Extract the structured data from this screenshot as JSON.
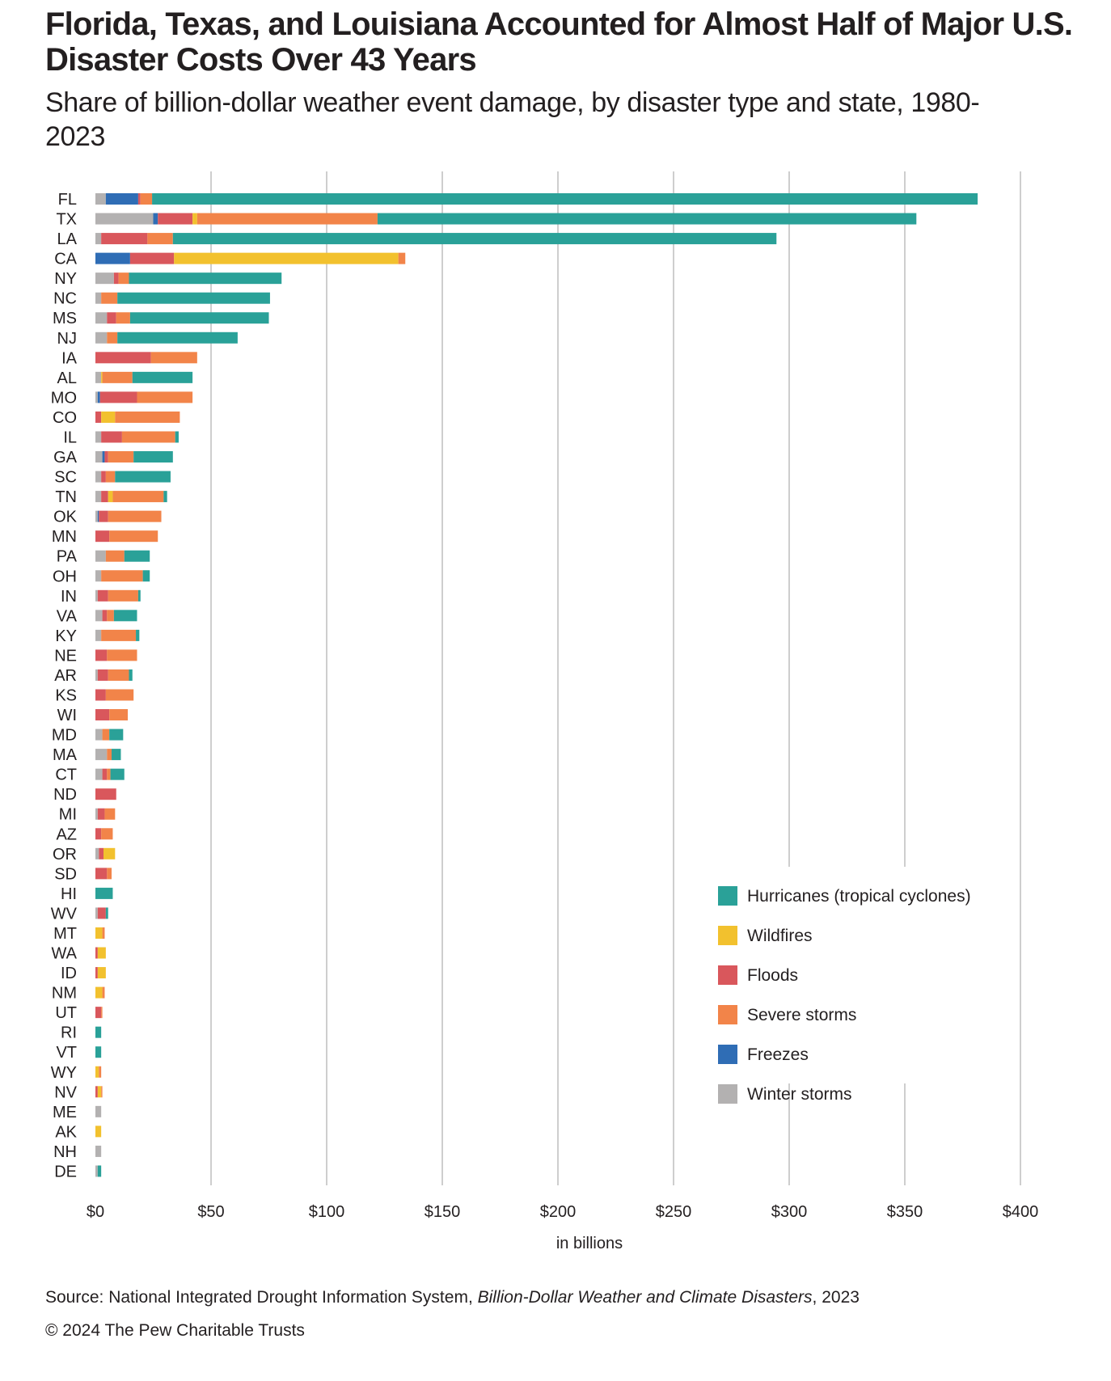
{
  "header": {
    "title": "Florida, Texas, and Louisiana Accounted for Almost Half of Major U.S. Disaster Costs Over 43 Years",
    "subtitle": "Share of billion-dollar weather event damage, by disaster type and state, 1980-2023"
  },
  "chart_data": {
    "type": "bar",
    "orientation": "horizontal",
    "stacked": true,
    "title": "Florida, Texas, and Louisiana Accounted for Almost Half of Major U.S. Disaster Costs Over 43 Years",
    "subtitle": "Share of billion-dollar weather event damage, by disaster type and state, 1980-2023",
    "xlabel": "in billions",
    "ylabel": "",
    "xlim": [
      0,
      400
    ],
    "x_ticks": [
      0,
      50,
      100,
      150,
      200,
      250,
      300,
      350,
      400
    ],
    "x_tick_labels": [
      "$0",
      "$50",
      "$100",
      "$150",
      "$200",
      "$250",
      "$300",
      "$350",
      "$400"
    ],
    "grid": "vertical",
    "legend_position": "bottom-right",
    "categories": [
      "FL",
      "TX",
      "LA",
      "CA",
      "NY",
      "NC",
      "MS",
      "NJ",
      "IA",
      "AL",
      "MO",
      "CO",
      "IL",
      "GA",
      "SC",
      "TN",
      "OK",
      "MN",
      "PA",
      "OH",
      "IN",
      "VA",
      "KY",
      "NE",
      "AR",
      "KS",
      "WI",
      "MD",
      "MA",
      "CT",
      "ND",
      "MI",
      "AZ",
      "OR",
      "SD",
      "HI",
      "WV",
      "MT",
      "WA",
      "ID",
      "NM",
      "UT",
      "RI",
      "VT",
      "WY",
      "NV",
      "ME",
      "AK",
      "NH",
      "DE"
    ],
    "series": [
      {
        "name": "Winter storms",
        "color": "#b3b1b1",
        "values": [
          4.5,
          25,
          2.5,
          0,
          8,
          2.5,
          5,
          5,
          0,
          2.5,
          1,
          0,
          2.5,
          3,
          2.5,
          2.5,
          1,
          0,
          4.5,
          2.5,
          1,
          3,
          2.5,
          0,
          1,
          0,
          0,
          3,
          5,
          3,
          0,
          1,
          0,
          1.5,
          0,
          0,
          1,
          0,
          0,
          0,
          0,
          0,
          0,
          0,
          0,
          0,
          2.5,
          0,
          2.5,
          1
        ]
      },
      {
        "name": "Freezes",
        "color": "#2f6db5",
        "values": [
          14,
          2,
          0,
          15,
          0,
          0,
          0,
          0,
          0,
          0,
          1,
          0,
          0,
          1,
          0,
          0,
          0.5,
          0,
          0,
          0,
          0,
          0,
          0,
          0,
          0,
          0,
          0,
          0,
          0,
          0,
          0,
          0,
          0,
          0,
          0,
          0,
          0,
          0,
          0,
          0,
          0,
          0,
          0,
          0,
          0,
          0,
          0,
          0,
          0,
          0
        ]
      },
      {
        "name": "Floods",
        "color": "#d9575c",
        "values": [
          1,
          15,
          20,
          19,
          2,
          0,
          4,
          0,
          24,
          0,
          16,
          2.5,
          9,
          1.5,
          2,
          3,
          4,
          6,
          0,
          0,
          4.5,
          2,
          0,
          5,
          4.5,
          4.5,
          6,
          0,
          0,
          2,
          9,
          3,
          2.5,
          2,
          5,
          0,
          3.5,
          0,
          1,
          1,
          0,
          2.5,
          0,
          0,
          0,
          1,
          0,
          0,
          0,
          0
        ]
      },
      {
        "name": "Wildfires",
        "color": "#f2c12e",
        "values": [
          0,
          2,
          0,
          97,
          0,
          0,
          0,
          0,
          0,
          0.5,
          0,
          6,
          0,
          0,
          0,
          2,
          0,
          0,
          0,
          0,
          0,
          0,
          0,
          0,
          0,
          0,
          0,
          0,
          0,
          0,
          0,
          0,
          0,
          5,
          0,
          0,
          0,
          3,
          3.5,
          3.5,
          3,
          0,
          0,
          0,
          1.5,
          1.5,
          0,
          2.5,
          0,
          0
        ]
      },
      {
        "name": "Severe storms",
        "color": "#f28449",
        "values": [
          5,
          78,
          11,
          3,
          4.5,
          7,
          6,
          4.5,
          20,
          13,
          24,
          28,
          23,
          11,
          4,
          22,
          23,
          21,
          8,
          18,
          13,
          3,
          15,
          13,
          9,
          12,
          8,
          3,
          2,
          1.5,
          0,
          4.5,
          5,
          0,
          2,
          0,
          0,
          1,
          0,
          0,
          1,
          0.5,
          0,
          0,
          1,
          0.5,
          0,
          0,
          0,
          0
        ]
      },
      {
        "name": "Hurricanes (tropical cyclones)",
        "color": "#2aa198",
        "values": [
          357,
          233,
          261,
          0,
          66,
          66,
          60,
          52,
          0,
          26,
          0,
          0,
          1.5,
          17,
          24,
          1.5,
          0,
          0,
          11,
          3,
          1,
          10,
          1.5,
          0,
          1.5,
          0,
          0,
          6,
          4,
          6,
          0,
          0,
          0,
          0,
          0,
          7.5,
          1,
          0,
          0,
          0,
          0,
          0,
          2.5,
          2.5,
          0,
          0,
          0,
          0,
          0,
          1.5
        ]
      }
    ]
  },
  "legend": {
    "items": [
      {
        "label": "Hurricanes (tropical cyclones)",
        "color": "#2aa198"
      },
      {
        "label": "Wildfires",
        "color": "#f2c12e"
      },
      {
        "label": "Floods",
        "color": "#d9575c"
      },
      {
        "label": "Severe storms",
        "color": "#f28449"
      },
      {
        "label": "Freezes",
        "color": "#2f6db5"
      },
      {
        "label": "Winter storms",
        "color": "#b3b1b1"
      }
    ]
  },
  "footer": {
    "source_prefix": "Source: National Integrated Drought Information System, ",
    "source_title": "Billion-Dollar Weather and Climate Disasters",
    "source_suffix": ", 2023",
    "copyright": "© 2024 The Pew Charitable Trusts"
  }
}
